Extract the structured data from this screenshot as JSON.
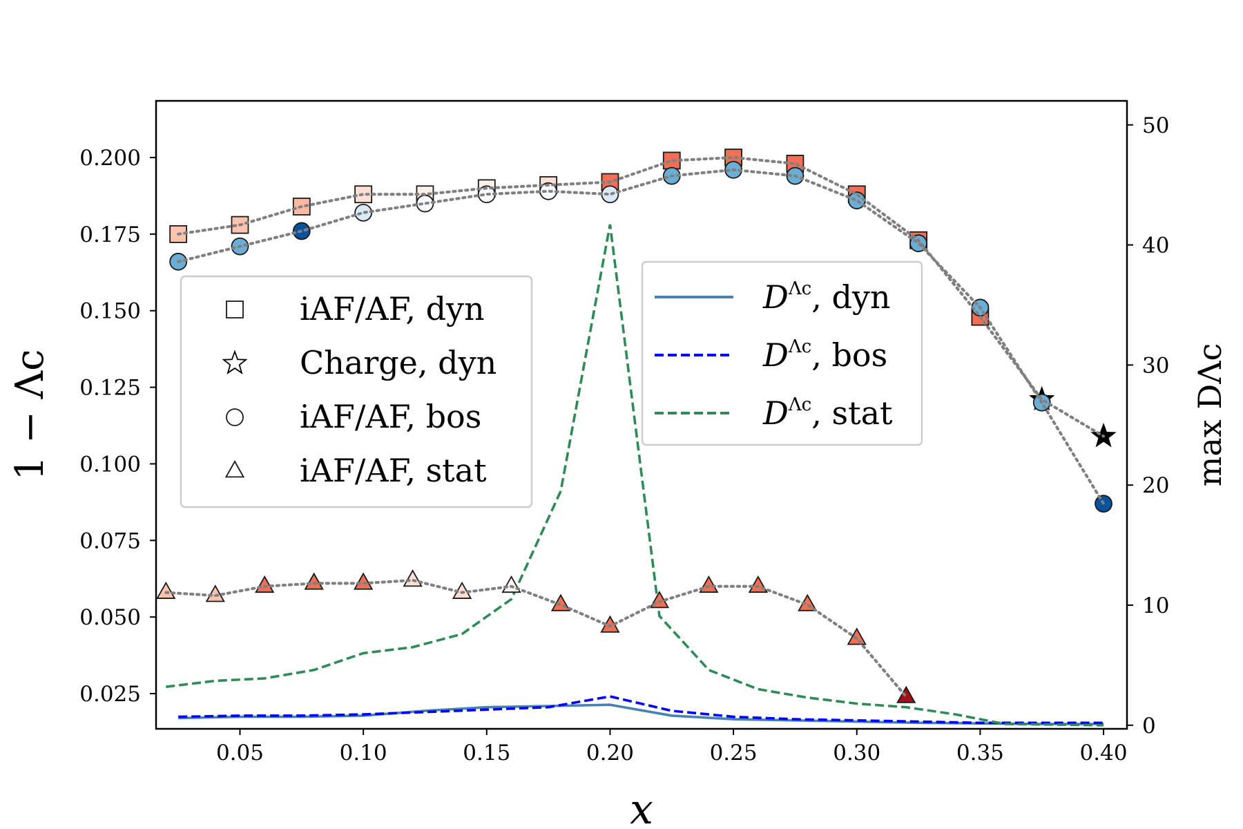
{
  "chart_data": {
    "type": "scatter+line (dual y-axis)",
    "xlabel": "x",
    "ylabel_left": "1 − Λc",
    "ylabel_right": "max DΛc",
    "x_ticks": [
      "0.05",
      "0.10",
      "0.15",
      "0.20",
      "0.25",
      "0.30",
      "0.35",
      "0.40"
    ],
    "y_left_ticks": [
      "0.025",
      "0.050",
      "0.075",
      "0.100",
      "0.125",
      "0.150",
      "0.175",
      "0.200"
    ],
    "y_right_ticks": [
      "0",
      "10",
      "20",
      "30",
      "40",
      "50"
    ],
    "xlim": [
      0.016,
      0.4095
    ],
    "ylim_left": [
      0.0135,
      0.2185
    ],
    "ylim_right": [
      -0.3,
      52.0
    ],
    "colors": {
      "grey_dotted": "#808080",
      "dyn_line": "#4682b4",
      "bos_line": "#0000ff",
      "stat_line": "#2e8b57",
      "square_edge": "#1a1a1a"
    },
    "scatter_series": [
      {
        "name": "iAF/AF, dyn",
        "marker": "square",
        "points": [
          {
            "x": 0.025,
            "y": 0.175,
            "color": "#fcc4ae"
          },
          {
            "x": 0.05,
            "y": 0.178,
            "color": "#fcc4ae"
          },
          {
            "x": 0.075,
            "y": 0.184,
            "color": "#fcb9a0"
          },
          {
            "x": 0.1,
            "y": 0.188,
            "color": "#fde0d3"
          },
          {
            "x": 0.125,
            "y": 0.188,
            "color": "#fff0e8"
          },
          {
            "x": 0.15,
            "y": 0.19,
            "color": "#fff0e8"
          },
          {
            "x": 0.175,
            "y": 0.191,
            "color": "#fde0d3"
          },
          {
            "x": 0.2,
            "y": 0.192,
            "color": "#f26f55"
          },
          {
            "x": 0.225,
            "y": 0.199,
            "color": "#f26f55"
          },
          {
            "x": 0.25,
            "y": 0.2,
            "color": "#f26f55"
          },
          {
            "x": 0.275,
            "y": 0.198,
            "color": "#f26f55"
          },
          {
            "x": 0.3,
            "y": 0.188,
            "color": "#f26f55"
          },
          {
            "x": 0.325,
            "y": 0.173,
            "color": "#f26f55"
          },
          {
            "x": 0.35,
            "y": 0.148,
            "color": "#f26f55"
          }
        ]
      },
      {
        "name": "Charge, dyn",
        "marker": "star",
        "points": [
          {
            "x": 0.375,
            "y": 0.121,
            "color": "#000000"
          },
          {
            "x": 0.4,
            "y": 0.109,
            "color": "#000000"
          }
        ]
      },
      {
        "name": "iAF/AF, bos",
        "marker": "circle",
        "points": [
          {
            "x": 0.025,
            "y": 0.166,
            "color": "#6aaed6"
          },
          {
            "x": 0.05,
            "y": 0.171,
            "color": "#6aaed6"
          },
          {
            "x": 0.075,
            "y": 0.176,
            "color": "#08519c"
          },
          {
            "x": 0.1,
            "y": 0.182,
            "color": "#dbe9f6"
          },
          {
            "x": 0.125,
            "y": 0.185,
            "color": "#f7fbff"
          },
          {
            "x": 0.15,
            "y": 0.188,
            "color": "#f7fbff"
          },
          {
            "x": 0.175,
            "y": 0.189,
            "color": "#f7fbff"
          },
          {
            "x": 0.2,
            "y": 0.188,
            "color": "#dbe9f6"
          },
          {
            "x": 0.225,
            "y": 0.194,
            "color": "#6aaed6"
          },
          {
            "x": 0.25,
            "y": 0.196,
            "color": "#6aaed6"
          },
          {
            "x": 0.275,
            "y": 0.194,
            "color": "#6aaed6"
          },
          {
            "x": 0.3,
            "y": 0.186,
            "color": "#6aaed6"
          },
          {
            "x": 0.325,
            "y": 0.172,
            "color": "#6aaed6"
          },
          {
            "x": 0.35,
            "y": 0.151,
            "color": "#6aaed6"
          },
          {
            "x": 0.375,
            "y": 0.12,
            "color": "#6aaed6"
          },
          {
            "x": 0.4,
            "y": 0.087,
            "color": "#08519c"
          }
        ]
      },
      {
        "name": "iAF/AF, stat",
        "marker": "triangle",
        "points": [
          {
            "x": 0.02,
            "y": 0.058,
            "color": "#fcc4ae"
          },
          {
            "x": 0.04,
            "y": 0.057,
            "color": "#fcc4ae"
          },
          {
            "x": 0.06,
            "y": 0.06,
            "color": "#f26f55"
          },
          {
            "x": 0.08,
            "y": 0.061,
            "color": "#f26f55"
          },
          {
            "x": 0.1,
            "y": 0.061,
            "color": "#f26f55"
          },
          {
            "x": 0.12,
            "y": 0.062,
            "color": "#fde0d3"
          },
          {
            "x": 0.14,
            "y": 0.058,
            "color": "#fde0d3"
          },
          {
            "x": 0.16,
            "y": 0.06,
            "color": "#fff5f0"
          },
          {
            "x": 0.18,
            "y": 0.054,
            "color": "#f26f55"
          },
          {
            "x": 0.2,
            "y": 0.047,
            "color": "#f26f55"
          },
          {
            "x": 0.22,
            "y": 0.055,
            "color": "#f26f55"
          },
          {
            "x": 0.24,
            "y": 0.06,
            "color": "#f26f55"
          },
          {
            "x": 0.26,
            "y": 0.06,
            "color": "#f26f55"
          },
          {
            "x": 0.28,
            "y": 0.054,
            "color": "#f26f55"
          },
          {
            "x": 0.3,
            "y": 0.043,
            "color": "#f26f55"
          },
          {
            "x": 0.32,
            "y": 0.024,
            "color": "#a50f15"
          }
        ]
      }
    ],
    "line_series": [
      {
        "name": "DΛc, dyn",
        "style": "solid",
        "color": "#4682b4",
        "x": [
          0.025,
          0.05,
          0.075,
          0.1,
          0.125,
          0.15,
          0.175,
          0.2,
          0.225,
          0.25,
          0.275,
          0.3,
          0.325,
          0.35,
          0.375,
          0.4
        ],
        "y": [
          0.6,
          0.7,
          0.7,
          0.8,
          1.2,
          1.5,
          1.6,
          1.7,
          0.8,
          0.5,
          0.4,
          0.3,
          0.2,
          0.15,
          0.1,
          0.1
        ]
      },
      {
        "name": "DΛc, bos",
        "style": "dashed",
        "color": "#0000ff",
        "x": [
          0.025,
          0.05,
          0.075,
          0.1,
          0.125,
          0.15,
          0.175,
          0.2,
          0.225,
          0.25,
          0.275,
          0.3,
          0.325,
          0.35,
          0.375,
          0.4
        ],
        "y": [
          0.7,
          0.8,
          0.8,
          0.9,
          1.1,
          1.3,
          1.5,
          2.4,
          1.2,
          0.7,
          0.5,
          0.4,
          0.3,
          0.2,
          0.2,
          0.2
        ]
      },
      {
        "name": "DΛc, stat",
        "style": "dashed",
        "color": "#2e8b57",
        "x": [
          0.02,
          0.04,
          0.06,
          0.08,
          0.1,
          0.12,
          0.14,
          0.16,
          0.18,
          0.2,
          0.22,
          0.24,
          0.26,
          0.28,
          0.3,
          0.32,
          0.34,
          0.36,
          0.38,
          0.4
        ],
        "y": [
          3.2,
          3.7,
          3.9,
          4.6,
          6.0,
          6.5,
          7.6,
          10.5,
          19.5,
          41.7,
          9.1,
          4.6,
          3.0,
          2.3,
          1.8,
          1.5,
          0.9,
          0.1,
          0.05,
          0.0
        ]
      }
    ],
    "legend_left": {
      "placement": "center-left",
      "entries": [
        {
          "marker": "square",
          "label": "iAF/AF, dyn"
        },
        {
          "marker": "star",
          "label": "Charge, dyn"
        },
        {
          "marker": "circle",
          "label": "iAF/AF, bos"
        },
        {
          "marker": "triangle",
          "label": "iAF/AF, stat"
        }
      ]
    },
    "legend_right": {
      "placement": "upper-center-right",
      "entries": [
        {
          "line": "solid",
          "color": "#4682b4",
          "symbol": "D",
          "superscript": "Λc",
          "label": ", dyn"
        },
        {
          "line": "dashed",
          "color": "#0000ff",
          "symbol": "D",
          "superscript": "Λc",
          "label": ", bos"
        },
        {
          "line": "dashed",
          "color": "#2e8b57",
          "symbol": "D",
          "superscript": "Λc",
          "label": ", stat"
        }
      ]
    }
  }
}
